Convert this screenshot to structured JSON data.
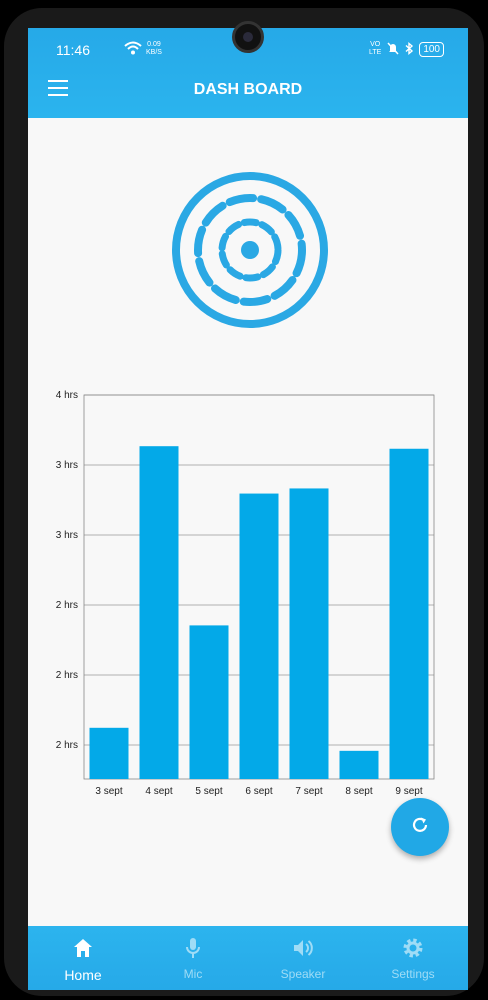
{
  "status_bar": {
    "time": "11:46",
    "net_speed_value": "0.09",
    "net_speed_unit": "KB/S",
    "volte_top": "VO",
    "volte_bottom": "LTE",
    "battery": "100"
  },
  "app_bar": {
    "title": "DASH BOARD"
  },
  "chart_data": {
    "type": "bar",
    "categories": [
      "3 sept",
      "4 sept",
      "5 sept",
      "6 sept",
      "7 sept",
      "8 sept",
      "9 sept"
    ],
    "values": [
      1.4,
      3.6,
      2.2,
      3.23,
      3.27,
      1.22,
      3.58
    ],
    "y_tick_labels": [
      "2 hrs",
      "2 hrs",
      "2 hrs",
      "3 hrs",
      "3 hrs",
      "4 hrs"
    ],
    "ylim": [
      1.0,
      4.0
    ],
    "grid": true,
    "color": "#03a9e8"
  },
  "fab": {
    "icon": "refresh-icon"
  },
  "bottom_nav": [
    {
      "label": "Home",
      "icon": "home-icon",
      "active": true
    },
    {
      "label": "Mic",
      "icon": "mic-icon",
      "active": false
    },
    {
      "label": "Speaker",
      "icon": "speaker-icon",
      "active": false
    },
    {
      "label": "Settings",
      "icon": "settings-icon",
      "active": false
    }
  ],
  "colors": {
    "accent": "#26a9e8",
    "bar": "#03a9e8",
    "background": "#f8f8f8"
  }
}
